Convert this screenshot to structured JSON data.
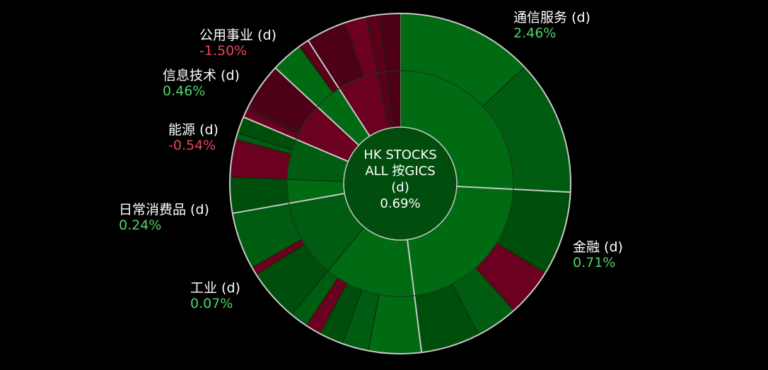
{
  "chart_data": {
    "type": "sunburst",
    "center": {
      "line1": "HK STOCKS",
      "line2": "ALL 按GICS",
      "line3": "(d)",
      "value": "0.69%"
    },
    "colors": {
      "background": "#000000",
      "separator": "#c8c8c8",
      "positive_value": "#4fd36b",
      "negative_value": "#e8455a",
      "green_shades": [
        "#006b12",
        "#005c10",
        "#004e0c"
      ],
      "red_shades": [
        "#6b0020",
        "#5c001a",
        "#4e0016"
      ]
    },
    "sectors": [
      {
        "name": "通信服务 (d)",
        "display_value": "2.46%",
        "change": 2.46,
        "weight": 25.8,
        "industries": [
          {
            "weight": 25.8,
            "change": 2.46,
            "stocks": [
              {
                "weight": 13.0,
                "change": 2.7
              },
              {
                "weight": 12.8,
                "change": 2.2
              }
            ]
          }
        ]
      },
      {
        "name": "金融 (d)",
        "display_value": "0.71%",
        "change": 0.71,
        "weight": 22.2,
        "industries": [
          {
            "weight": 22.2,
            "change": 0.71,
            "stocks": [
              {
                "weight": 8.0,
                "change": 0.9
              },
              {
                "weight": 4.6,
                "change": -0.4
              },
              {
                "weight": 4.0,
                "change": 0.3
              },
              {
                "weight": 5.6,
                "change": 0.6
              }
            ]
          }
        ]
      },
      {
        "name": "工业 (d)",
        "display_value": "0.07%",
        "change": 0.07,
        "weight": 24.2,
        "industries": [
          {
            "weight": 13.0,
            "change": 0.4,
            "stocks": [
              {
                "weight": 5.0,
                "change": 0.5
              },
              {
                "weight": 2.5,
                "change": 0.3
              },
              {
                "weight": 2.3,
                "change": 0.2
              },
              {
                "weight": 1.5,
                "change": -0.3
              },
              {
                "weight": 1.7,
                "change": 0.2
              }
            ]
          },
          {
            "weight": 11.2,
            "change": 0.2,
            "stocks": [
              {
                "weight": 5.0,
                "change": 0.3
              },
              {
                "weight": 0.8,
                "change": -0.2
              },
              {
                "weight": 5.4,
                "change": 0.2
              }
            ]
          }
        ]
      },
      {
        "name": "日常消费品 (d)",
        "display_value": "0.24%",
        "change": 0.24,
        "weight": 9.2,
        "industries": [
          {
            "weight": 3.4,
            "change": 0.3,
            "stocks": [
              {
                "weight": 3.4,
                "change": 0.3
              }
            ]
          },
          {
            "weight": 5.8,
            "change": 0.2,
            "stocks": [
              {
                "weight": 3.6,
                "change": -0.4
              },
              {
                "weight": 0.6,
                "change": 0.1
              },
              {
                "weight": 1.6,
                "change": 0.3
              }
            ]
          }
        ]
      },
      {
        "name": "能源 (d)",
        "display_value": "-0.54%",
        "change": -0.54,
        "weight": 5.5,
        "industries": [
          {
            "weight": 5.5,
            "change": -0.54,
            "stocks": [
              {
                "weight": 0.8,
                "change": -0.5
              },
              {
                "weight": 0.4,
                "change": -0.6
              },
              {
                "weight": 4.3,
                "change": -0.6
              }
            ]
          }
        ]
      },
      {
        "name": "信息技术 (d)",
        "display_value": "0.46%",
        "change": 0.46,
        "weight": 4.0,
        "industries": [
          {
            "weight": 4.0,
            "change": 0.46,
            "stocks": [
              {
                "weight": 3.0,
                "change": 0.5
              },
              {
                "weight": 1.0,
                "change": -0.4
              }
            ]
          }
        ]
      },
      {
        "name": "公用事业 (d)",
        "display_value": "-1.50%",
        "change": -1.5,
        "weight": 9.1,
        "industries": [
          {
            "weight": 5.9,
            "change": -1.4,
            "stocks": [
              {
                "weight": 3.8,
                "change": -1.2
              },
              {
                "weight": 2.1,
                "change": -1.5
              }
            ]
          },
          {
            "weight": 1.2,
            "change": -1.3,
            "stocks": [
              {
                "weight": 1.2,
                "change": -1.3
              }
            ]
          },
          {
            "weight": 2.0,
            "change": -1.6,
            "stocks": [
              {
                "weight": 2.0,
                "change": -1.6
              }
            ]
          }
        ]
      }
    ]
  }
}
